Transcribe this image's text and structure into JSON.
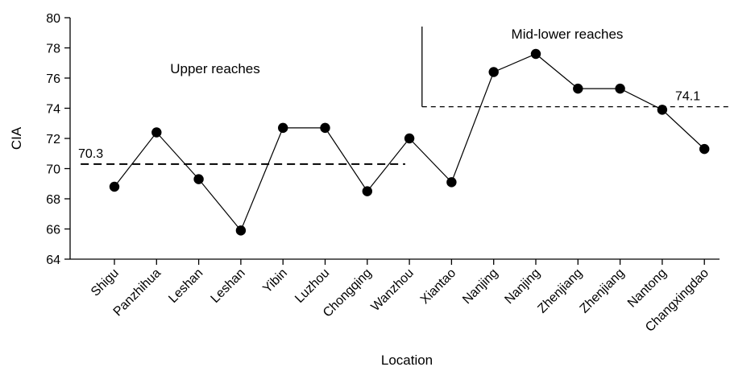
{
  "chart_data": {
    "type": "line",
    "title": "",
    "xlabel": "Location",
    "ylabel": "CIA",
    "ylim": [
      64,
      80
    ],
    "yticks": [
      "64",
      "66",
      "68",
      "70",
      "72",
      "74",
      "76",
      "78",
      "80"
    ],
    "grid": false,
    "categories": [
      "Shigu",
      "Panzhihua",
      "Leshan",
      "Leshan",
      "Yibin",
      "Luzhou",
      "Chongqing",
      "Wanzhou",
      "Xiantao",
      "Nanjing",
      "Nanjing",
      "Zhenjiang",
      "Zhenjiang",
      "Nantong",
      "Changxingdao"
    ],
    "series": [
      {
        "values": [
          68.8,
          72.4,
          69.3,
          65.9,
          72.7,
          72.7,
          68.5,
          72.0,
          69.1,
          76.4,
          77.6,
          75.3,
          75.3,
          73.9,
          71.3
        ]
      }
    ],
    "reference_lines": [
      {
        "label": "70.3",
        "value": 70.3,
        "from_index": -0.8,
        "to_index": 6.9
      },
      {
        "label": "74.1",
        "value": 74.1,
        "from_index": 7.3,
        "to_index": 14.8
      }
    ],
    "divider_index": 7.3,
    "region_labels": [
      {
        "text": "Upper reaches",
        "region": "upper"
      },
      {
        "text": "Mid-lower reaches",
        "region": "mid-lower"
      }
    ]
  },
  "colors": {
    "line": "#000000",
    "marker": "#000000",
    "axis": "#000000"
  }
}
